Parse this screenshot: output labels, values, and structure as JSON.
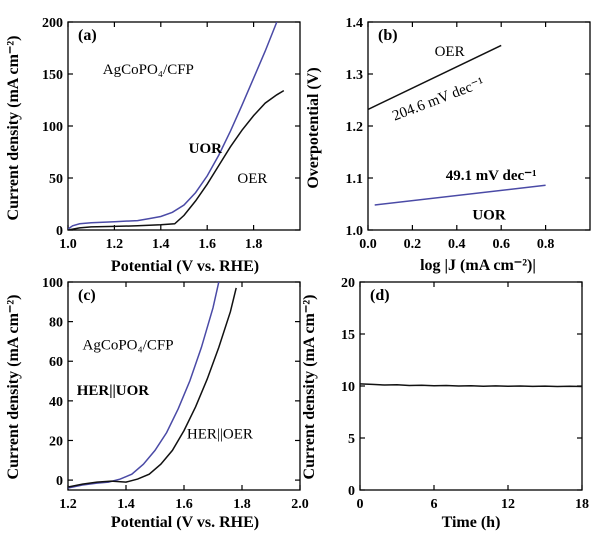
{
  "colors": {
    "black": "#111111",
    "blue": "#4a4aa6"
  },
  "chart_data": [
    {
      "panel": "(a)",
      "type": "line",
      "xlabel": "Potential (V vs. RHE)",
      "ylabel": "Current density (mA cm⁻²)",
      "xlim": [
        1.0,
        2.0
      ],
      "ylim": [
        0,
        200
      ],
      "xticks": [
        1.0,
        1.2,
        1.4,
        1.6,
        1.8
      ],
      "xticklabels": [
        "1.0",
        "1.2",
        "1.4",
        "1.6",
        "1.8"
      ],
      "yticks": [
        0,
        50,
        100,
        150,
        200
      ],
      "yticklabels": [
        "0",
        "50",
        "100",
        "150",
        "200"
      ],
      "annotations": [
        {
          "text": "AgCoPO₄/CFP",
          "x": 1.15,
          "y": 150
        },
        {
          "text": "UOR",
          "x": 1.52,
          "y": 74,
          "color": "blue"
        },
        {
          "text": "OER",
          "x": 1.73,
          "y": 45,
          "color": "black"
        }
      ],
      "series": [
        {
          "name": "UOR",
          "color": "blue",
          "x": [
            1.0,
            1.02,
            1.05,
            1.1,
            1.2,
            1.3,
            1.35,
            1.4,
            1.45,
            1.5,
            1.55,
            1.6,
            1.65,
            1.7,
            1.75,
            1.8,
            1.85,
            1.9
          ],
          "y": [
            1,
            4,
            6,
            7,
            8,
            9,
            11,
            13,
            17,
            24,
            36,
            52,
            72,
            95,
            120,
            146,
            172,
            200
          ]
        },
        {
          "name": "OER",
          "color": "black",
          "x": [
            1.0,
            1.05,
            1.1,
            1.2,
            1.3,
            1.4,
            1.46,
            1.5,
            1.55,
            1.6,
            1.65,
            1.7,
            1.75,
            1.8,
            1.85,
            1.9,
            1.93
          ],
          "y": [
            0,
            2,
            3,
            3.5,
            4,
            5,
            6,
            14,
            28,
            44,
            62,
            80,
            96,
            110,
            122,
            130,
            134
          ]
        }
      ]
    },
    {
      "panel": "(b)",
      "type": "line",
      "xlabel": "log |J (mA cm⁻²)|",
      "ylabel": "Overpotential (V)",
      "xlim": [
        0.0,
        1.0
      ],
      "ylim": [
        1.0,
        1.4
      ],
      "xticks": [
        0.0,
        0.2,
        0.4,
        0.6,
        0.8
      ],
      "xticklabels": [
        "0.0",
        "0.2",
        "0.4",
        "0.6",
        "0.8"
      ],
      "yticks": [
        1.0,
        1.1,
        1.2,
        1.3,
        1.4
      ],
      "yticklabels": [
        "1.0",
        "1.1",
        "1.2",
        "1.3",
        "1.4"
      ],
      "annotations": [
        {
          "text": "OER",
          "x": 0.3,
          "y": 1.335,
          "color": "black"
        },
        {
          "text": "204.6 mV dec⁻¹",
          "x": 0.12,
          "y": 1.21,
          "color": "black",
          "rotate": -21
        },
        {
          "text": "49.1 mV dec⁻¹",
          "x": 0.35,
          "y": 1.096,
          "color": "blue"
        },
        {
          "text": "UOR",
          "x": 0.47,
          "y": 1.02,
          "color": "blue"
        }
      ],
      "series": [
        {
          "name": "OER",
          "color": "black",
          "x": [
            0.0,
            0.6
          ],
          "y": [
            1.232,
            1.355
          ]
        },
        {
          "name": "UOR",
          "color": "blue",
          "x": [
            0.03,
            0.8
          ],
          "y": [
            1.048,
            1.086
          ]
        }
      ]
    },
    {
      "panel": "(c)",
      "type": "line",
      "xlabel": "Potential (V vs. RHE)",
      "ylabel": "Current density (mA cm⁻²)",
      "xlim": [
        1.2,
        2.0
      ],
      "ylim": [
        -5,
        100
      ],
      "xticks": [
        1.2,
        1.4,
        1.6,
        1.8,
        2.0
      ],
      "xticklabels": [
        "1.2",
        "1.4",
        "1.6",
        "1.8",
        "2.0"
      ],
      "yticks": [
        0,
        20,
        40,
        60,
        80,
        100
      ],
      "yticklabels": [
        "0",
        "20",
        "40",
        "60",
        "80",
        "100"
      ],
      "annotations": [
        {
          "text": "AgCoPO₄/CFP",
          "x": 1.25,
          "y": 66
        },
        {
          "text": "HER||UOR",
          "x": 1.23,
          "y": 43,
          "color": "blue"
        },
        {
          "text": "HER||OER",
          "x": 1.61,
          "y": 21,
          "color": "black"
        }
      ],
      "series": [
        {
          "name": "HER||UOR",
          "color": "blue",
          "x": [
            1.2,
            1.25,
            1.3,
            1.34,
            1.38,
            1.42,
            1.46,
            1.5,
            1.54,
            1.58,
            1.62,
            1.66,
            1.7,
            1.72
          ],
          "y": [
            -4,
            -2.5,
            -1.5,
            -1,
            0.5,
            3,
            8,
            15,
            24,
            36,
            50,
            67,
            87,
            100
          ]
        },
        {
          "name": "HER||OER",
          "color": "black",
          "x": [
            1.2,
            1.25,
            1.3,
            1.35,
            1.4,
            1.44,
            1.48,
            1.52,
            1.56,
            1.6,
            1.64,
            1.68,
            1.72,
            1.76,
            1.78
          ],
          "y": [
            -3.5,
            -2,
            -1,
            -0.5,
            -1,
            0.5,
            3,
            8,
            15,
            25,
            37,
            51,
            67,
            85,
            97
          ]
        }
      ]
    },
    {
      "panel": "(d)",
      "type": "line",
      "xlabel": "Time (h)",
      "ylabel": "Current density (mA cm⁻²)",
      "xlim": [
        0,
        18
      ],
      "ylim": [
        0,
        20
      ],
      "xticks": [
        0,
        6,
        12,
        18
      ],
      "xticklabels": [
        "0",
        "6",
        "12",
        "18"
      ],
      "yticks": [
        0,
        5,
        10,
        15,
        20
      ],
      "yticklabels": [
        "0",
        "5",
        "10",
        "15",
        "20"
      ],
      "annotations": [],
      "series": [
        {
          "name": "",
          "color": "black",
          "x": [
            0,
            1,
            2,
            3,
            4,
            5,
            6,
            7,
            8,
            9,
            10,
            11,
            12,
            13,
            14,
            15,
            16,
            17,
            18
          ],
          "y": [
            10.2,
            10.15,
            10.1,
            10.12,
            10.05,
            10.08,
            10.02,
            10.05,
            10.0,
            10.03,
            9.98,
            10.01,
            9.97,
            10.0,
            9.96,
            9.99,
            9.95,
            9.97,
            9.95
          ]
        }
      ]
    }
  ]
}
